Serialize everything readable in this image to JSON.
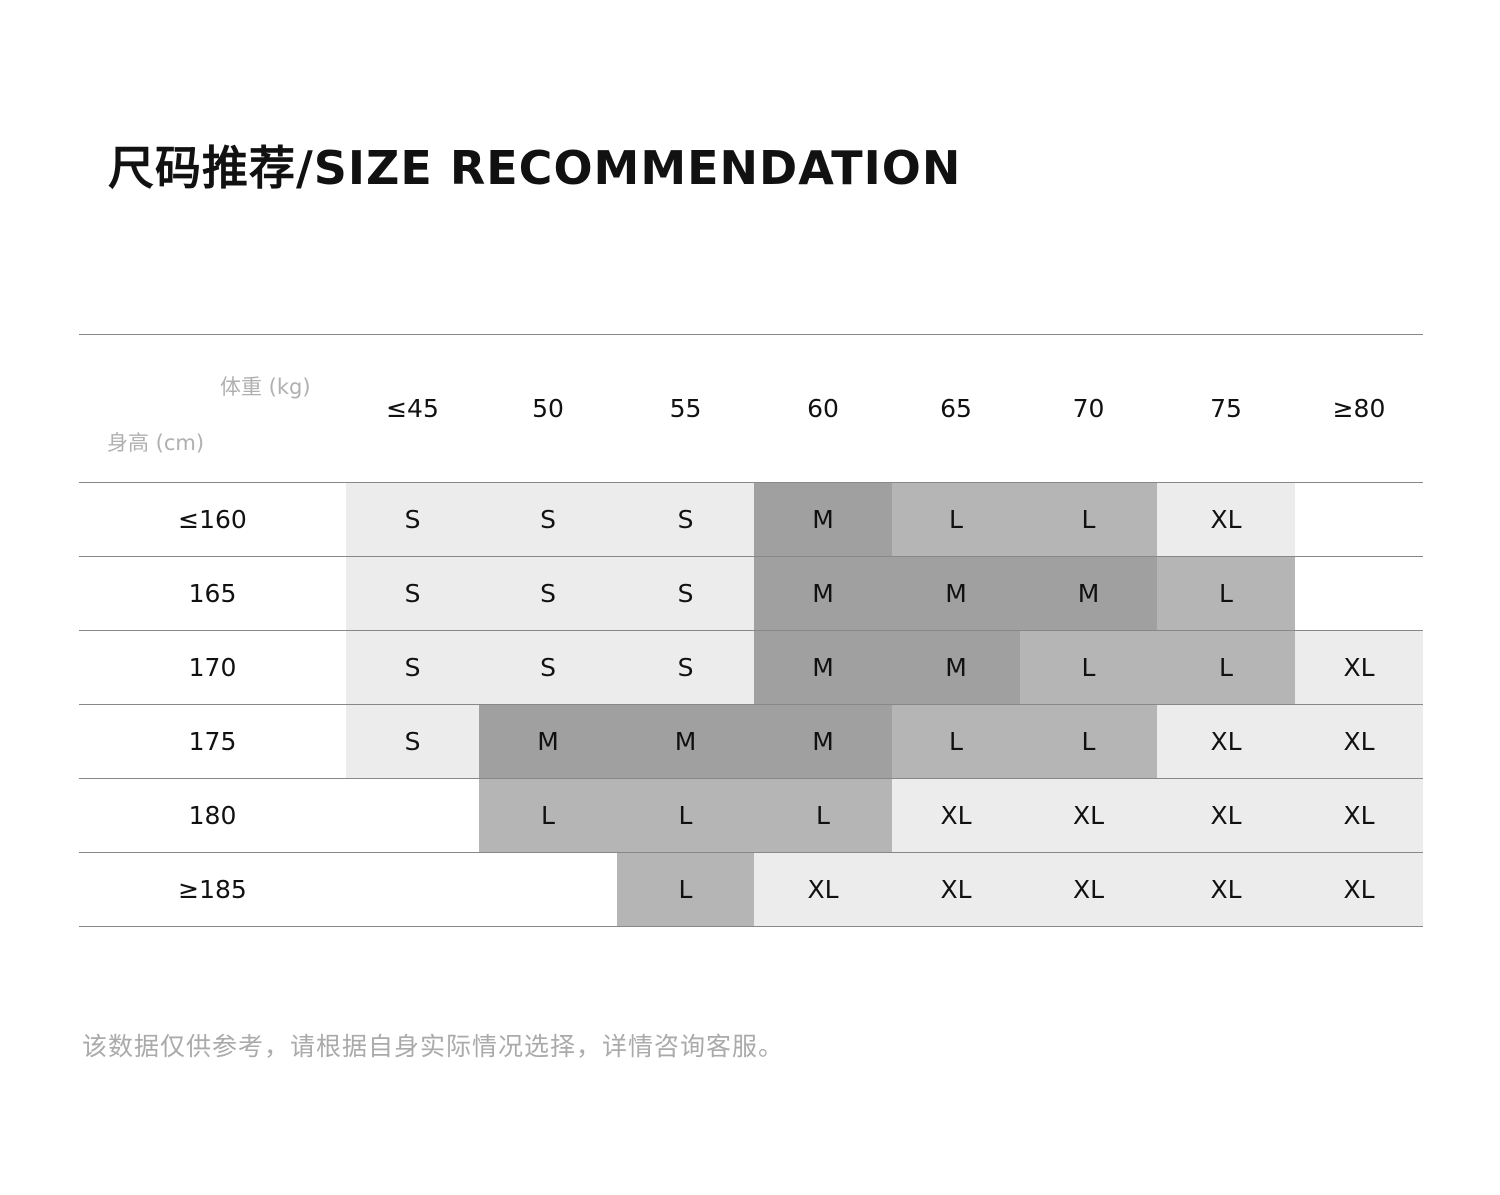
{
  "title": "尺码推荐/SIZE RECOMMENDATION",
  "table": {
    "weight_label": "体重 (kg)",
    "height_label": "身高 (cm)",
    "weights": [
      "≤45",
      "50",
      "55",
      "60",
      "65",
      "70",
      "75",
      "≥80"
    ],
    "rows": [
      {
        "height": "≤160",
        "sizes": [
          "S",
          "S",
          "S",
          "M",
          "L",
          "L",
          "XL",
          ""
        ]
      },
      {
        "height": "165",
        "sizes": [
          "S",
          "S",
          "S",
          "M",
          "M",
          "M",
          "L",
          ""
        ]
      },
      {
        "height": "170",
        "sizes": [
          "S",
          "S",
          "S",
          "M",
          "M",
          "L",
          "L",
          "XL"
        ]
      },
      {
        "height": "175",
        "sizes": [
          "S",
          "M",
          "M",
          "M",
          "L",
          "L",
          "XL",
          "XL"
        ]
      },
      {
        "height": "180",
        "sizes": [
          "",
          "L",
          "L",
          "L",
          "XL",
          "XL",
          "XL",
          "XL"
        ]
      },
      {
        "height": "≥185",
        "sizes": [
          "",
          "",
          "L",
          "XL",
          "XL",
          "XL",
          "XL",
          "XL"
        ]
      }
    ]
  },
  "colors": {
    "S": "#ececec",
    "M": "#a0a0a0",
    "L": "#b5b5b5",
    "XL": "#ececec"
  },
  "note": "该数据仅供参考，请根据自身实际情况选择，详情咨询客服。"
}
